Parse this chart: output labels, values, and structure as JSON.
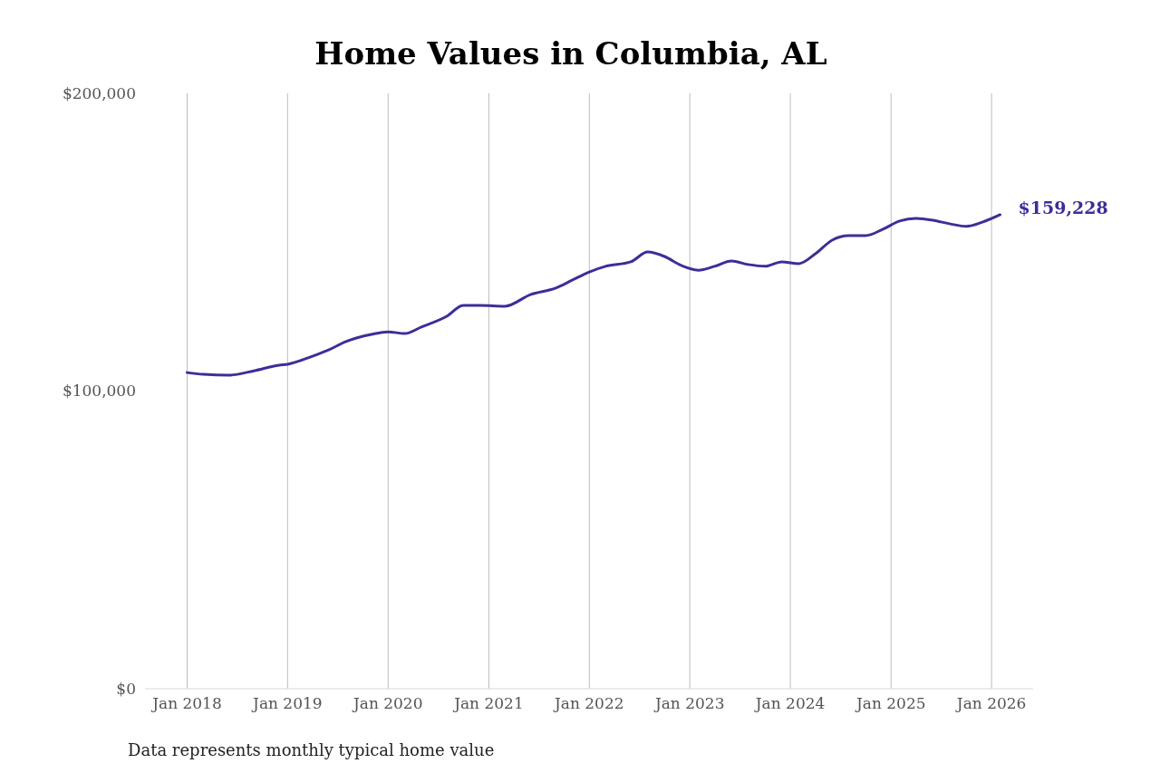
{
  "chart_data": {
    "type": "line",
    "title": "Home Values in Columbia, AL",
    "x": [
      "2018-01",
      "2018-03",
      "2018-06",
      "2018-09",
      "2018-12",
      "2019-01",
      "2019-04",
      "2019-06",
      "2019-08",
      "2019-11",
      "2020-01",
      "2020-03",
      "2020-05",
      "2020-08",
      "2020-10",
      "2020-12",
      "2021-03",
      "2021-06",
      "2021-09",
      "2021-11",
      "2022-01",
      "2022-03",
      "2022-06",
      "2022-08",
      "2022-10",
      "2022-12",
      "2023-02",
      "2023-04",
      "2023-06",
      "2023-08",
      "2023-10",
      "2023-12",
      "2024-02",
      "2024-04",
      "2024-06",
      "2024-08",
      "2024-10",
      "2024-12",
      "2025-02",
      "2025-04",
      "2025-06",
      "2025-08",
      "2025-10",
      "2025-12",
      "2026-02"
    ],
    "series": [
      {
        "color": "#3b2f98",
        "values": [
          106200,
          105600,
          105300,
          106800,
          108700,
          109000,
          111700,
          113900,
          116600,
          119000,
          119900,
          119300,
          121500,
          125100,
          128800,
          128800,
          128500,
          132400,
          134600,
          137300,
          140000,
          141900,
          143400,
          146700,
          145200,
          142200,
          140600,
          141900,
          143700,
          142500,
          141900,
          143400,
          142800,
          146100,
          150700,
          152200,
          152200,
          154300,
          157100,
          158000,
          157400,
          156200,
          155300,
          156800,
          159228
        ],
        "value_labels": [
          null,
          null,
          null,
          null,
          null,
          null,
          null,
          null,
          null,
          null,
          null,
          null,
          null,
          null,
          null,
          null,
          null,
          null,
          null,
          null,
          null,
          null,
          null,
          null,
          null,
          null,
          null,
          null,
          null,
          null,
          null,
          null,
          null,
          null,
          null,
          null,
          null,
          null,
          null,
          null,
          null,
          null,
          null,
          null,
          "$159,228"
        ]
      }
    ],
    "xticks": [
      {
        "value": "2018-01",
        "label": "Jan 2018"
      },
      {
        "value": "2019-01",
        "label": "Jan 2019"
      },
      {
        "value": "2020-01",
        "label": "Jan 2020"
      },
      {
        "value": "2021-01",
        "label": "Jan 2021"
      },
      {
        "value": "2022-01",
        "label": "Jan 2022"
      },
      {
        "value": "2023-01",
        "label": "Jan 2023"
      },
      {
        "value": "2024-01",
        "label": "Jan 2024"
      },
      {
        "value": "2025-01",
        "label": "Jan 2025"
      },
      {
        "value": "2026-01",
        "label": "Jan 2026"
      }
    ],
    "ylim": [
      0,
      200000
    ],
    "yticks": [
      {
        "value": 0,
        "label": "$0"
      },
      {
        "value": 100000,
        "label": "$100,000"
      },
      {
        "value": 200000,
        "label": "$200,000"
      }
    ],
    "xlim": [
      "2017-08",
      "2026-06"
    ],
    "grid": "x",
    "annotations": [
      "Data represents monthly typical home value"
    ]
  }
}
